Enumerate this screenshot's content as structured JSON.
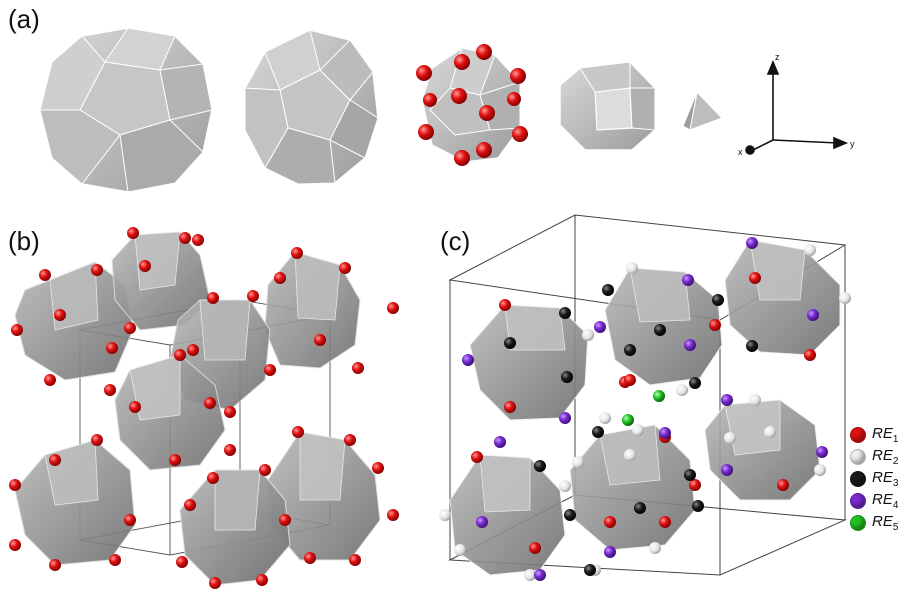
{
  "panels": {
    "a": {
      "label": "(a)"
    },
    "b": {
      "label": "(b)"
    },
    "c": {
      "label": "(c)"
    }
  },
  "axes": {
    "x": "x",
    "y": "y",
    "z": "z"
  },
  "legend": [
    {
      "base": "RE",
      "sub": "1",
      "color": "#e01010"
    },
    {
      "base": "RE",
      "sub": "2",
      "color": "#f0f0f0"
    },
    {
      "base": "RE",
      "sub": "3",
      "color": "#1a1a1a"
    },
    {
      "base": "RE",
      "sub": "4",
      "color": "#7a2ad0"
    },
    {
      "base": "RE",
      "sub": "5",
      "color": "#22c422"
    }
  ]
}
